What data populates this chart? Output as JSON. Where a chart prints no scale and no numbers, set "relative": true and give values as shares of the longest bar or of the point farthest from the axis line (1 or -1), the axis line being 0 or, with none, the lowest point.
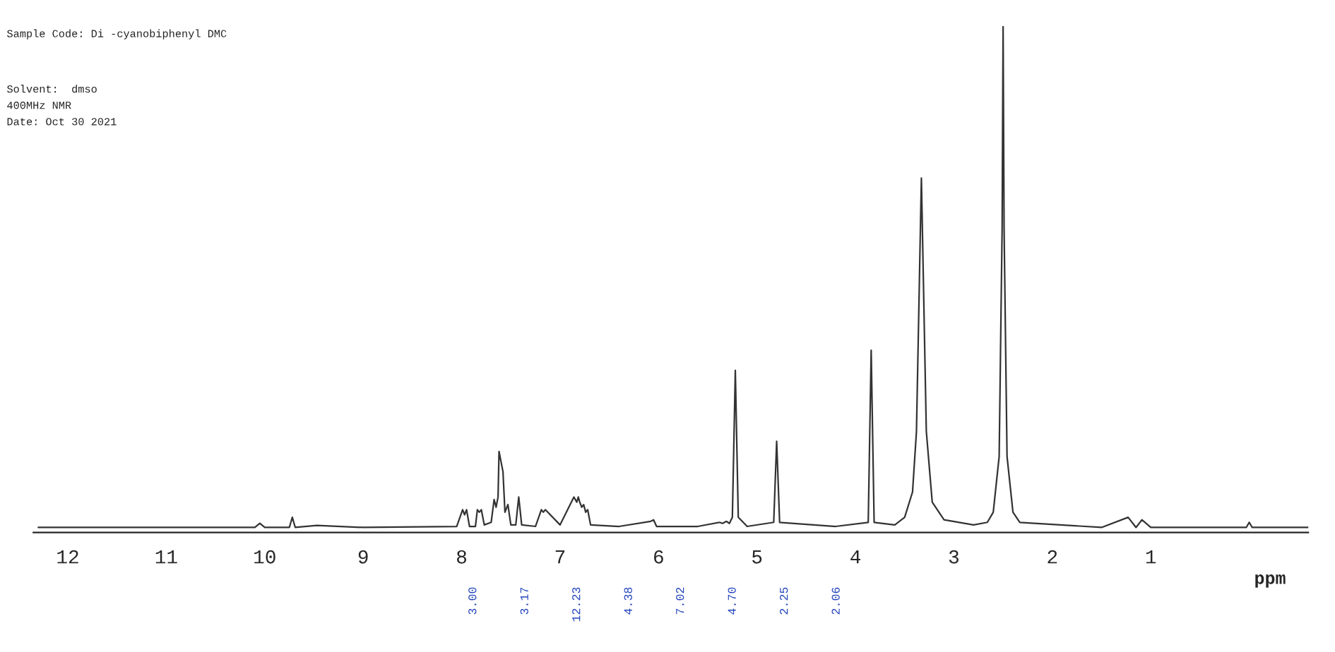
{
  "chart_data": {
    "type": "line",
    "title": "Sample Code: Di -cyanobiphenyl DMC",
    "xlabel": "ppm",
    "relative": true,
    "xlim": [
      12.35,
      -0.6
    ],
    "xticks": [
      12,
      11,
      10,
      9,
      8,
      7,
      6,
      5,
      4,
      3,
      2,
      1
    ],
    "grid": false,
    "legend": false,
    "marker": "none",
    "line_style": "solid",
    "x": [
      12.3,
      10.1,
      10.05,
      10.0,
      9.75,
      9.72,
      9.69,
      9.47,
      9.0,
      8.05,
      7.99,
      7.97,
      7.95,
      7.92,
      7.86,
      7.84,
      7.82,
      7.8,
      7.77,
      7.7,
      7.67,
      7.65,
      7.63,
      7.62,
      7.6,
      7.58,
      7.56,
      7.53,
      7.5,
      7.45,
      7.42,
      7.39,
      7.25,
      7.19,
      7.17,
      7.15,
      7.0,
      6.86,
      6.83,
      6.815,
      6.8,
      6.78,
      6.76,
      6.74,
      6.72,
      6.69,
      6.4,
      6.08,
      6.05,
      6.02,
      5.6,
      5.38,
      5.35,
      5.31,
      5.28,
      5.25,
      5.22,
      5.19,
      5.1,
      4.83,
      4.8,
      4.77,
      4.2,
      3.87,
      3.84,
      3.81,
      3.6,
      3.5,
      3.42,
      3.38,
      3.35,
      3.33,
      3.31,
      3.28,
      3.22,
      3.1,
      2.8,
      2.66,
      2.6,
      2.54,
      2.51,
      2.5,
      2.49,
      2.46,
      2.4,
      2.33,
      1.5,
      1.23,
      1.15,
      1.09,
      1.0,
      0.03,
      0.0,
      -0.03,
      -0.6
    ],
    "series": [
      {
        "color": "#333333",
        "values": [
          0.01,
          0.01,
          0.018,
          0.01,
          0.01,
          0.03,
          0.01,
          0.014,
          0.01,
          0.012,
          0.045,
          0.035,
          0.045,
          0.012,
          0.012,
          0.045,
          0.04,
          0.045,
          0.015,
          0.02,
          0.065,
          0.05,
          0.07,
          0.16,
          0.14,
          0.12,
          0.04,
          0.055,
          0.015,
          0.015,
          0.07,
          0.015,
          0.012,
          0.045,
          0.04,
          0.045,
          0.015,
          0.07,
          0.06,
          0.07,
          0.06,
          0.05,
          0.055,
          0.04,
          0.045,
          0.015,
          0.012,
          0.022,
          0.025,
          0.012,
          0.012,
          0.02,
          0.018,
          0.022,
          0.018,
          0.03,
          0.32,
          0.03,
          0.012,
          0.02,
          0.18,
          0.02,
          0.012,
          0.02,
          0.36,
          0.02,
          0.015,
          0.03,
          0.08,
          0.2,
          0.5,
          0.7,
          0.5,
          0.2,
          0.06,
          0.025,
          0.015,
          0.02,
          0.04,
          0.15,
          0.6,
          1.0,
          0.6,
          0.15,
          0.04,
          0.02,
          0.01,
          0.03,
          0.01,
          0.025,
          0.01,
          0.01,
          0.02,
          0.01,
          0.01
        ]
      }
    ],
    "annotations": [
      "Solvent:  dmso",
      "400MHz NMR",
      "Date: Oct 30 2021",
      "3.00",
      "3.17",
      "12.23",
      "4.38",
      "7.02",
      "4.70",
      "2.25",
      "2.06"
    ]
  }
}
